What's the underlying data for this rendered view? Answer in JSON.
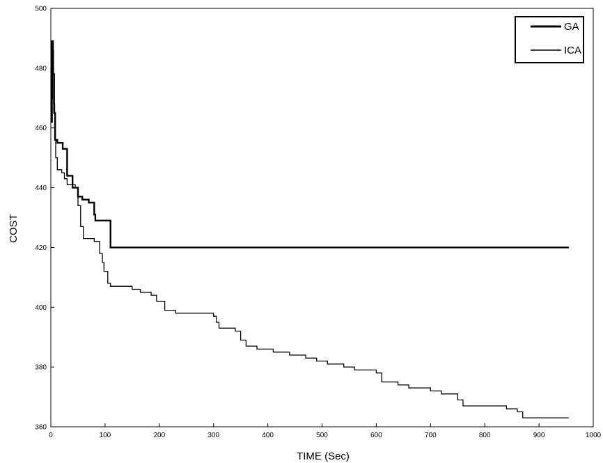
{
  "chart_data": {
    "type": "line",
    "title": "",
    "xlabel": "TIME (Sec)",
    "ylabel": "COST",
    "xlim": [
      0,
      1000
    ],
    "ylim": [
      360,
      500
    ],
    "xticks": [
      0,
      100,
      200,
      300,
      400,
      500,
      600,
      700,
      800,
      900,
      1000
    ],
    "yticks": [
      360,
      380,
      400,
      420,
      440,
      460,
      480,
      500
    ],
    "grid": false,
    "legend_position": "top-right",
    "series": [
      {
        "name": "GA",
        "step": true,
        "points": [
          [
            0,
            462
          ],
          [
            2,
            489
          ],
          [
            4,
            478
          ],
          [
            6,
            465
          ],
          [
            8,
            456
          ],
          [
            12,
            455
          ],
          [
            22,
            453
          ],
          [
            30,
            444
          ],
          [
            40,
            440
          ],
          [
            50,
            437
          ],
          [
            58,
            436
          ],
          [
            70,
            435
          ],
          [
            80,
            431
          ],
          [
            82,
            429
          ],
          [
            110,
            420
          ],
          [
            955,
            420
          ]
        ]
      },
      {
        "name": "ICA",
        "step": true,
        "points": [
          [
            0,
            470
          ],
          [
            3,
            486
          ],
          [
            5,
            468
          ],
          [
            7,
            456
          ],
          [
            9,
            450
          ],
          [
            12,
            446
          ],
          [
            20,
            445
          ],
          [
            25,
            443
          ],
          [
            30,
            441
          ],
          [
            45,
            440
          ],
          [
            50,
            434
          ],
          [
            55,
            427
          ],
          [
            60,
            423
          ],
          [
            80,
            422
          ],
          [
            90,
            418
          ],
          [
            95,
            415
          ],
          [
            98,
            412
          ],
          [
            105,
            408
          ],
          [
            110,
            407
          ],
          [
            150,
            406
          ],
          [
            165,
            405
          ],
          [
            185,
            404
          ],
          [
            195,
            402
          ],
          [
            210,
            399
          ],
          [
            230,
            398
          ],
          [
            300,
            397
          ],
          [
            305,
            395
          ],
          [
            310,
            393
          ],
          [
            340,
            392
          ],
          [
            350,
            389
          ],
          [
            360,
            387
          ],
          [
            380,
            386
          ],
          [
            410,
            385
          ],
          [
            440,
            384
          ],
          [
            470,
            383
          ],
          [
            490,
            382
          ],
          [
            510,
            381
          ],
          [
            540,
            380
          ],
          [
            560,
            379
          ],
          [
            600,
            378
          ],
          [
            610,
            375
          ],
          [
            640,
            374
          ],
          [
            660,
            373
          ],
          [
            700,
            372
          ],
          [
            720,
            371
          ],
          [
            750,
            369
          ],
          [
            760,
            367
          ],
          [
            840,
            366
          ],
          [
            860,
            365
          ],
          [
            870,
            363
          ],
          [
            955,
            363
          ]
        ]
      }
    ]
  }
}
